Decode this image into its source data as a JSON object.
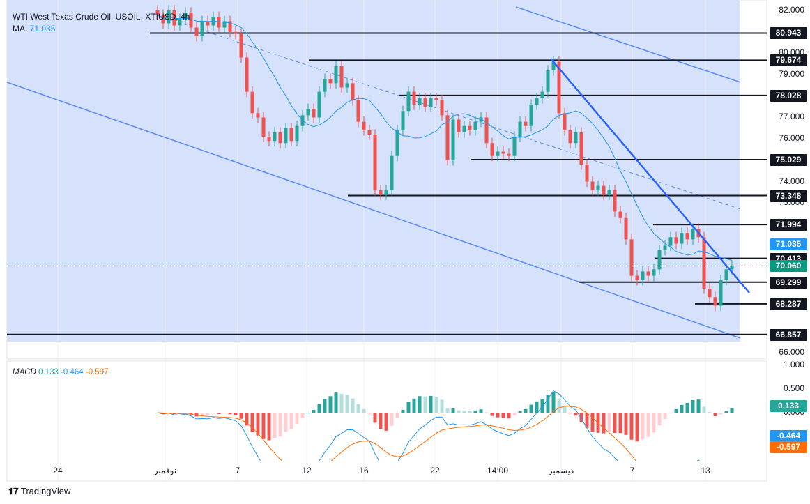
{
  "header": {
    "title": "WTI West Texas Crude Oil, USOIL, XTIUSD, 4h",
    "ma_label": "MA",
    "ma_value": "71.035"
  },
  "macd_legend": {
    "label": "MACD",
    "hist": "0.133",
    "macd": "-0.464",
    "signal": "-0.597"
  },
  "colors": {
    "up": "#26a69a",
    "down": "#ef5350",
    "ma": "#2196f3",
    "channel_fill": "#d6e1fc",
    "channel_line": "#5b8cf5",
    "macd": "#2196f3",
    "signal": "#ff6d00",
    "last_price": "#089981"
  },
  "chart_data": {
    "type": "candlestick",
    "title": "WTI West Texas Crude Oil, USOIL, XTIUSD, 4h",
    "ylim": [
      65.5,
      82.5
    ],
    "y_ticks": [
      "82.000",
      "80.000",
      "79.000",
      "77.000",
      "76.000",
      "74.000",
      "73.000",
      "66.000"
    ],
    "x_ticks": [
      "24",
      "نوفمبر",
      "7",
      "12",
      "16",
      "22",
      "14:00",
      "ديسمبر",
      "7",
      "13"
    ],
    "closes": [
      81.8,
      81.4,
      82.0,
      81.3,
      81.6,
      81.9,
      81.2,
      80.8,
      81.5,
      81.3,
      81.7,
      81.2,
      81.5,
      81.0,
      80.9,
      79.8,
      78.2,
      77.2,
      77.0,
      76.1,
      75.9,
      76.3,
      75.8,
      76.5,
      75.9,
      76.6,
      77.1,
      77.4,
      77.0,
      78.2,
      78.8,
      78.6,
      79.4,
      78.4,
      78.6,
      77.8,
      76.8,
      76.4,
      76.2,
      73.6,
      73.4,
      73.6,
      75.2,
      76.4,
      77.3,
      78.2,
      77.6,
      77.9,
      77.5,
      77.9,
      77.8,
      77.1,
      75.0,
      76.9,
      76.3,
      76.6,
      76.4,
      76.8,
      77.0,
      75.8,
      75.2,
      75.4,
      75.3,
      75.2,
      76.1,
      76.8,
      76.6,
      77.6,
      77.9,
      78.2,
      79.2,
      79.6,
      77.2,
      76.4,
      75.8,
      76.3,
      74.8,
      74.0,
      73.6,
      73.8,
      73.4,
      73.6,
      72.6,
      72.3,
      71.3,
      69.6,
      69.4,
      69.8,
      69.6,
      69.9,
      70.8,
      71.0,
      71.4,
      71.1,
      71.6,
      71.3,
      71.8,
      71.4,
      69.0,
      68.6,
      68.2,
      69.4,
      69.9,
      70.06
    ],
    "levels": [
      "80.943",
      "79.674",
      "78.028",
      "75.029",
      "73.348",
      "71.994",
      "70.413",
      "69.299",
      "68.287",
      "66.857"
    ],
    "last_price": "70.060",
    "ma_price": "71.035",
    "macd_ticks": [
      "1.000",
      "0.500",
      "0.000"
    ],
    "macd_tags": {
      "hist": "0.133",
      "macd": "-0.464",
      "signal": "-0.597"
    }
  },
  "footer": {
    "brand": "TradingView"
  }
}
